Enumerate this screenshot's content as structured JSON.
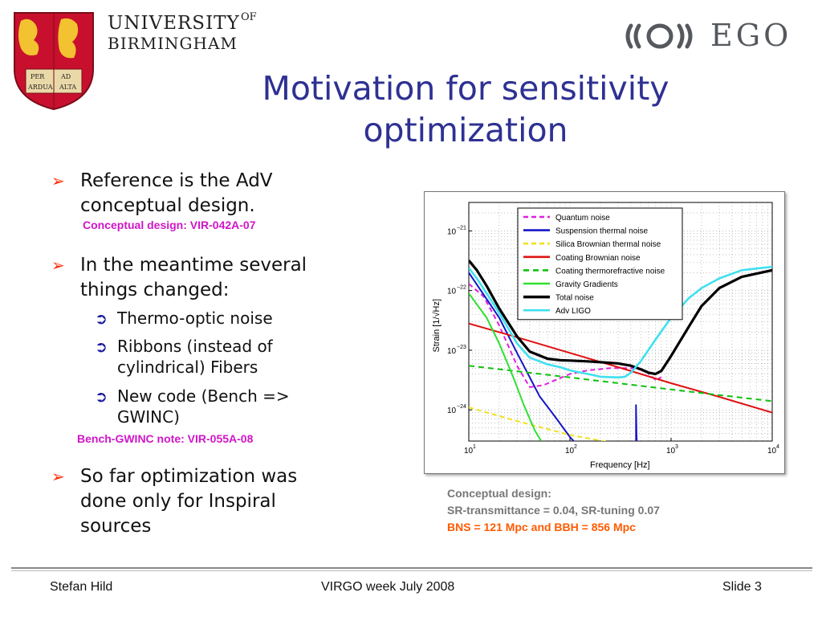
{
  "header": {
    "university_line1": "UNIVERSITY",
    "university_of": "OF",
    "university_line2": "BIRMINGHAM",
    "crest_motto": [
      "PER",
      "AD",
      "ARDUA",
      "ALTA"
    ],
    "ego_text": "EGO"
  },
  "title": {
    "line1": "Motivation for sensitivity",
    "line2": "optimization"
  },
  "bullets": [
    {
      "line1": "Reference is the AdV",
      "line2": "conceptual design.",
      "note": "Conceptual design: VIR-042A-07"
    },
    {
      "line1": "In the meantime several",
      "line2": "things changed:"
    },
    {
      "line1": "So far optimization was",
      "line2": "done only for Inspiral",
      "line3": "sources"
    }
  ],
  "sub_bullets": [
    {
      "line1": "Thermo-optic noise"
    },
    {
      "line1": "Ribbons (instead of",
      "line2": "cylindrical) Fibers"
    },
    {
      "line1": "New code (Bench =>",
      "line2": "GWINC)"
    }
  ],
  "bench_note": "Bench-GWINC note: VIR-055A-08",
  "caption": {
    "line1": "Conceptual design:",
    "line2": "SR-transmittance = 0.04, SR-tuning 0.07",
    "line3": "BNS = 121 Mpc and BBH = 856 Mpc"
  },
  "footer": {
    "author": "Stefan Hild",
    "event": "VIRGO week July 2008",
    "slide": "Slide 3"
  },
  "colors": {
    "title": "#2e3192",
    "bullet_arrow": "#ff2a00",
    "note_magenta": "#d016c8",
    "caption_gray": "#777777",
    "caption_orange": "#ff5a00"
  },
  "chart_data": {
    "type": "line",
    "xscale": "log",
    "yscale": "log",
    "xlim": [
      10,
      10000
    ],
    "ylim": [
      3e-25,
      3e-21
    ],
    "xlabel": "Frequency [Hz]",
    "ylabel": "Strain [1/√Hz]",
    "x_ticks": [
      10,
      100,
      1000,
      10000
    ],
    "x_tick_labels": [
      "10",
      "10",
      "10",
      "10"
    ],
    "x_tick_exps": [
      "1",
      "2",
      "3",
      "4"
    ],
    "y_ticks": [
      1e-24,
      1e-23,
      1e-22,
      1e-21
    ],
    "y_tick_labels": [
      "10",
      "10",
      "10",
      "10"
    ],
    "y_tick_exps": [
      "−24",
      "−23",
      "−22",
      "−21"
    ],
    "grid": true,
    "legend_position": "top-center",
    "series": [
      {
        "name": "Quantum noise",
        "color": "#e020e0",
        "dash": "6,4",
        "x": [
          10,
          14,
          20,
          30,
          40,
          55,
          70,
          100,
          150,
          250,
          400,
          550,
          700,
          800
        ],
        "y": [
          1.3e-22,
          8e-23,
          2.6e-23,
          5.5e-24,
          2.4e-24,
          2.6e-24,
          3.1e-24,
          4e-24,
          4.6e-24,
          5e-24,
          5e-24,
          4.6e-24,
          3.2e-24,
          3.5e-24
        ]
      },
      {
        "name": "Suspension thermal noise",
        "color": "#1515c8",
        "dash": "",
        "x": [
          10,
          20,
          30,
          50,
          70,
          100,
          120,
          450,
          450,
          450,
          455,
          460
        ],
        "y": [
          2e-22,
          3.5e-23,
          9e-24,
          1.7e-24,
          8e-25,
          3.5e-25,
          2.5e-25,
          2.5e-25,
          1.2e-24,
          1.2e-24,
          4e-25,
          2.5e-25
        ]
      },
      {
        "name": "Silica Brownian thermal noise",
        "color": "#f0e020",
        "dash": "6,4",
        "x": [
          10,
          30,
          100,
          300,
          500
        ],
        "y": [
          1.1e-24,
          6.5e-25,
          3.8e-25,
          2.7e-25,
          2.5e-25
        ]
      },
      {
        "name": "Coating Brownian noise",
        "color": "#e01010",
        "dash": "",
        "x": [
          10,
          30,
          100,
          300,
          1000,
          3000,
          10000
        ],
        "y": [
          2.8e-23,
          1.65e-23,
          9e-24,
          5.2e-24,
          2.8e-24,
          1.65e-24,
          9e-25
        ]
      },
      {
        "name": "Coating thermorefractive noise",
        "color": "#10c010",
        "dash": "7,5",
        "x": [
          10,
          100,
          1000,
          10000
        ],
        "y": [
          5.5e-24,
          3.5e-24,
          2.2e-24,
          1.4e-24
        ]
      },
      {
        "name": "Gravity Gradients",
        "color": "#30e030",
        "dash": "",
        "x": [
          10,
          15,
          20,
          28,
          35,
          45,
          52
        ],
        "y": [
          9e-23,
          3.5e-23,
          1.3e-23,
          3.3e-24,
          1.2e-24,
          4.5e-25,
          3e-25
        ]
      },
      {
        "name": "Total noise",
        "color": "#000000",
        "dash": "",
        "x": [
          10,
          12,
          15,
          20,
          30,
          40,
          60,
          80,
          100,
          150,
          200,
          300,
          400,
          500,
          600,
          700,
          800,
          1000,
          1500,
          2000,
          3000,
          5000,
          10000
        ],
        "y": [
          3.2e-22,
          2.2e-22,
          1.2e-22,
          5e-23,
          1.7e-23,
          9.5e-24,
          7.2e-24,
          6.8e-24,
          6.7e-24,
          6.5e-24,
          6.3e-24,
          6e-24,
          5.5e-24,
          4.8e-24,
          4.2e-24,
          4e-24,
          4.5e-24,
          8e-24,
          2.5e-23,
          5.5e-23,
          1.1e-22,
          1.7e-22,
          2.2e-22
        ]
      },
      {
        "name": "Adv LIGO",
        "color": "#40e0f0",
        "dash": "",
        "x": [
          10,
          12,
          15,
          20,
          30,
          40,
          60,
          80,
          100,
          150,
          200,
          300,
          350,
          400,
          500,
          700,
          1000,
          1500,
          2000,
          3000,
          5000,
          10000
        ],
        "y": [
          2.4e-22,
          1.6e-22,
          9e-23,
          4.2e-23,
          1.3e-23,
          7.5e-24,
          5.8e-24,
          5.2e-24,
          4.6e-24,
          4e-24,
          3.6e-24,
          3.5e-24,
          3.6e-24,
          4.2e-24,
          6.5e-24,
          1.5e-23,
          3.5e-23,
          7.5e-23,
          1.1e-22,
          1.6e-22,
          2.2e-22,
          2.5e-22
        ]
      }
    ]
  }
}
